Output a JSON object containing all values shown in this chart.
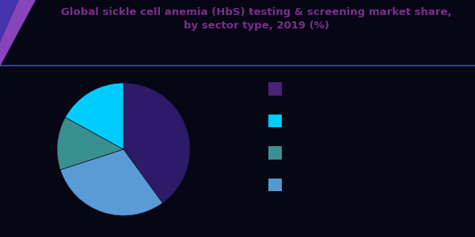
{
  "title_line1": "Global sickle cell anemia (HbS) testing & screening market share,",
  "title_line2": "by sector type, 2019 (%)",
  "background_color": "#060614",
  "title_color": "#7b2d8b",
  "header_bg_color": "#0d0d2b",
  "header_line_color": "#4444bb",
  "slices": [
    40.0,
    30.0,
    13.0,
    17.0
  ],
  "slice_colors": [
    "#2d1b69",
    "#5b9bd5",
    "#3a8f8f",
    "#00ccff"
  ],
  "legend_colors": [
    "#4a2278",
    "#00ccff",
    "#3a9090",
    "#5599cc"
  ],
  "startangle": 90,
  "title_fontsize": 9.5,
  "legend_fontsize": 8,
  "legend_text_color": "#060614",
  "corner_tri_color1": "#8844bb",
  "corner_tri_color2": "#4433aa"
}
